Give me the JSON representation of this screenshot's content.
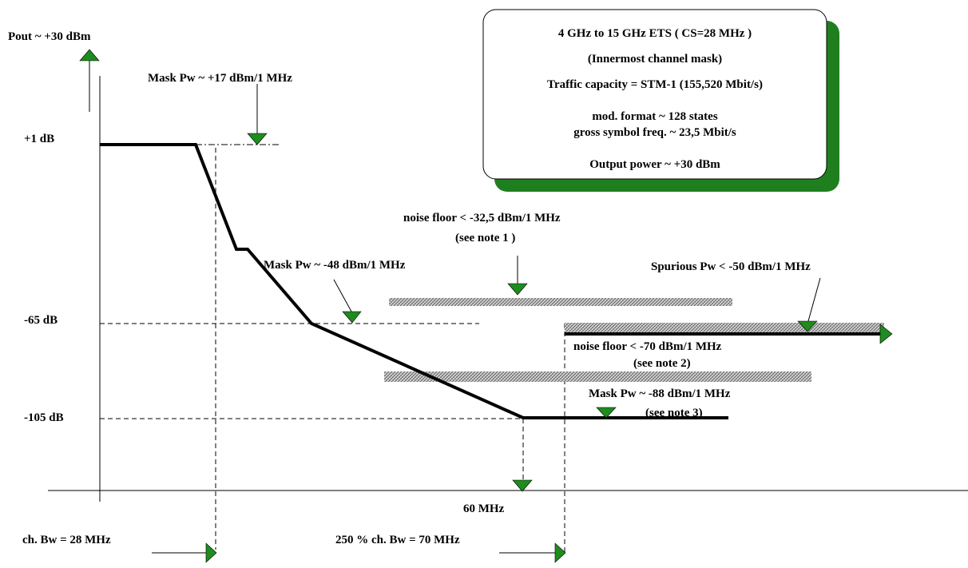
{
  "title_box": {
    "line1": "4 GHz to 15 GHz ETS ( CS=28 MHz )",
    "line2": "(Innermost channel mask)",
    "line3": "Traffic capacity = STM-1 (155,520 Mbit/s)",
    "line4": "mod. format ~ 128 states",
    "line5": "gross symbol freq. ~ 23,5 Mbit/s",
    "line6": "Output power ~ +30 dBm"
  },
  "y_axis": {
    "top_label": "Pout ~ +30 dBm",
    "levels": [
      "+1 dB",
      "-65 dB",
      "-105 dB"
    ]
  },
  "annotations": {
    "mask_high": "Mask Pw ~ +17 dBm/1 MHz",
    "noise1_line1": "noise floor < -32,5 dBm/1 MHz",
    "noise1_line2": "(see note 1 )",
    "mask_mid": "Mask Pw ~ -48 dBm/1 MHz",
    "spurious": "Spurious Pw < -50 dBm/1 MHz",
    "noise2_line1": "noise floor < -70 dBm/1 MHz",
    "noise2_line2": "(see note 2)",
    "mask_low_line1": "Mask Pw ~ -88 dBm/1 MHz",
    "mask_low_line2": "(see note 3)"
  },
  "x_axis": {
    "freq_label": "60 MHz",
    "bw_label": "ch. Bw = 28 MHz",
    "bw250_label": "250 % ch. Bw = 70 MHz"
  },
  "colors": {
    "arrow_fill": "#1e8c1e",
    "box_shadow": "#1f7f1f",
    "mask_line": "#000000"
  }
}
